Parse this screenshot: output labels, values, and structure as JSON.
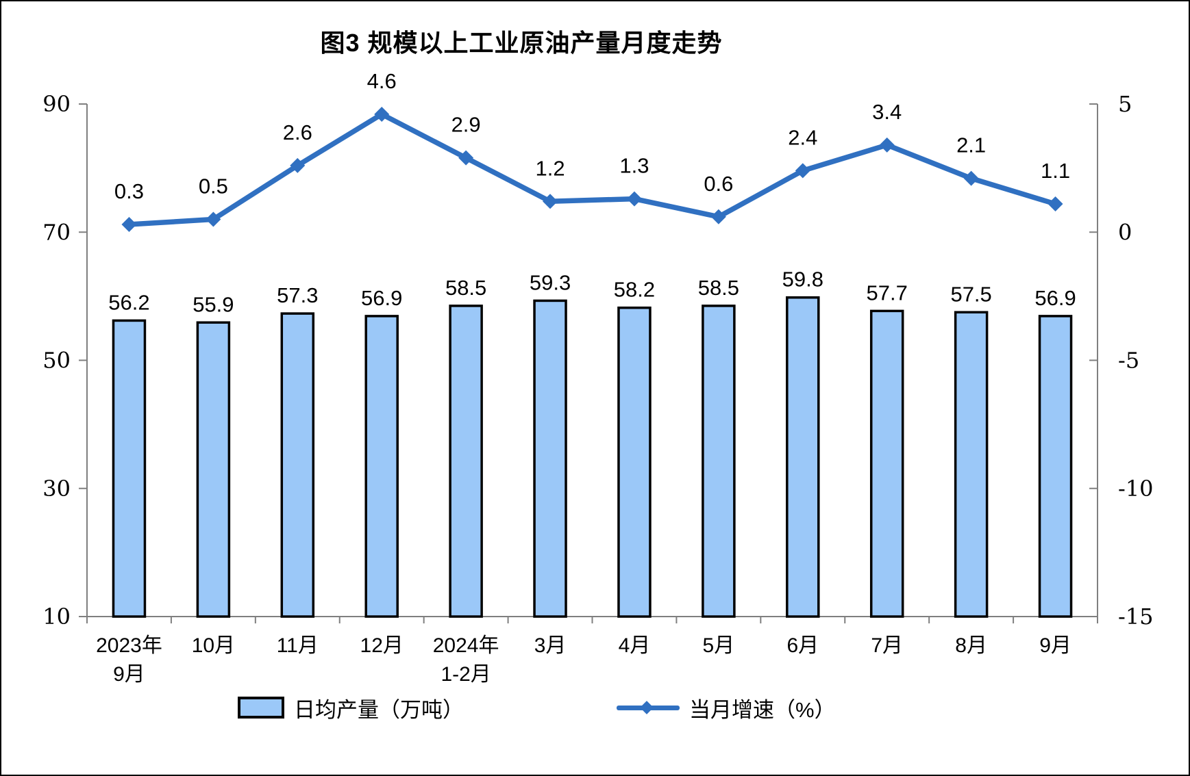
{
  "figure": {
    "title": "图3 规模以上工业原油产量月度走势"
  },
  "chart_data": {
    "type": "bar+line combo",
    "title": "图3 规模以上工业原油产量月度走势",
    "categories": [
      [
        "2023年",
        "9月"
      ],
      [
        "10月"
      ],
      [
        "11月"
      ],
      [
        "12月"
      ],
      [
        "2024年",
        "1-2月"
      ],
      [
        "3月"
      ],
      [
        "4月"
      ],
      [
        "5月"
      ],
      [
        "6月"
      ],
      [
        "7月"
      ],
      [
        "8月"
      ],
      [
        "9月"
      ]
    ],
    "series": [
      {
        "name": "日均产量（万吨）",
        "type": "bar",
        "axis": "left",
        "values": [
          56.2,
          55.9,
          57.3,
          56.9,
          58.5,
          59.3,
          58.2,
          58.5,
          59.8,
          57.7,
          57.5,
          56.9
        ]
      },
      {
        "name": "当月增速（%）",
        "type": "line",
        "axis": "right",
        "values": [
          0.3,
          0.5,
          2.6,
          4.6,
          2.9,
          1.2,
          1.3,
          0.6,
          2.4,
          3.4,
          2.1,
          1.1
        ]
      }
    ],
    "left_axis": {
      "min": 10,
      "max": 90,
      "ticks": [
        90,
        70,
        50,
        30,
        10
      ]
    },
    "right_axis": {
      "min": -15,
      "max": 5,
      "ticks": [
        5,
        0,
        -5,
        -10,
        -15
      ]
    },
    "legend_position": "bottom",
    "grid": false,
    "data_labels": true,
    "colors": {
      "bar_fill": "#9BC8F8",
      "bar_border": "#000000",
      "line": "#3070C1",
      "axis": "#7f7f7f",
      "text": "#000000"
    }
  }
}
